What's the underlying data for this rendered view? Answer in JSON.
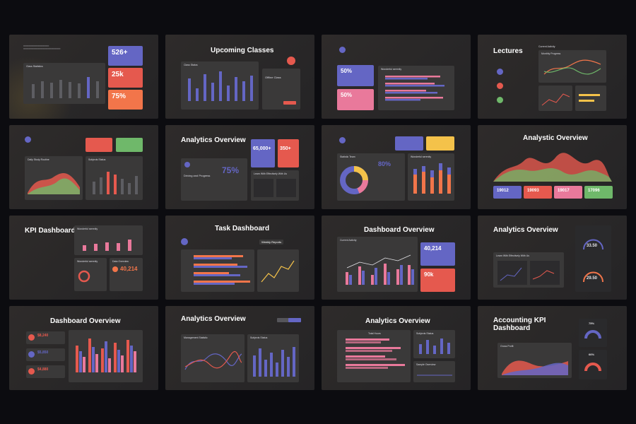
{
  "colors": {
    "blue": "#6466c4",
    "red": "#e5594e",
    "orange": "#f2754a",
    "green": "#6fb86a",
    "pink": "#e9799b",
    "yellow": "#f4c24a",
    "background": "#0c0c10"
  },
  "slides": {
    "s1": {
      "kpi1": "526+",
      "kpi2": "25k",
      "kpi3": "75%",
      "panel": "Class Statistics"
    },
    "s2": {
      "title": "Upcoming Classes",
      "panel": "Class Status",
      "side": "Offline Class"
    },
    "s3": {
      "v1": "50%",
      "v2": "50%",
      "panel": "Wonderful serenity"
    },
    "s4": {
      "title": "Lectures",
      "panel": "Monthly Progress",
      "sub": "Current Activity"
    },
    "s5": {
      "panel1": "Daily Study Routine",
      "panel2": "Subjects Status"
    },
    "s6": {
      "title": "Analytics Overview",
      "k1": "65,000+",
      "k2": "350+",
      "pct": "75%",
      "sub": "Driving and Progress",
      "box": "Learn With Effectively With Us"
    },
    "s7": {
      "pct": "80%",
      "panel1": "Statistic Team",
      "panel2": "Wonderful serenity"
    },
    "s8": {
      "title": "Analystic Overview",
      "n1": "19012",
      "n2": "19093",
      "n3": "19017",
      "n4": "17096"
    },
    "s9": {
      "title": "KPI Dashboard",
      "panel1": "Wonderful serenity",
      "panel2": "Wonderful serenity",
      "panel3": "Data Overview",
      "num": "40,214"
    },
    "s10": {
      "title": "Task Dashboard",
      "tab": "Weekly Reports"
    },
    "s11": {
      "title": "Dashboard Overview",
      "panel": "Current Activity",
      "n1": "40,214",
      "n2": "90k"
    },
    "s12": {
      "title": "Analytics Overview",
      "g1": "33.50",
      "g2": "29.50",
      "box": "Learn With Effectively With Us"
    },
    "s13": {
      "title": "Dashboard Overview",
      "m1": "$8,240",
      "m2": "$5,850",
      "m3": "$4,880"
    },
    "s14": {
      "title": "Analytics Overview",
      "panel1": "Management Statistic",
      "panel2": "Subjects Status"
    },
    "s15": {
      "title": "Analytics Overview",
      "panel1": "Total Hours",
      "panel2": "Subjects Status",
      "panel3": "Sample Overview"
    },
    "s16": {
      "title": "Accounting KPI Dashboard",
      "p1": "75%",
      "p2": "66%",
      "panel": "Gross Profit"
    }
  }
}
